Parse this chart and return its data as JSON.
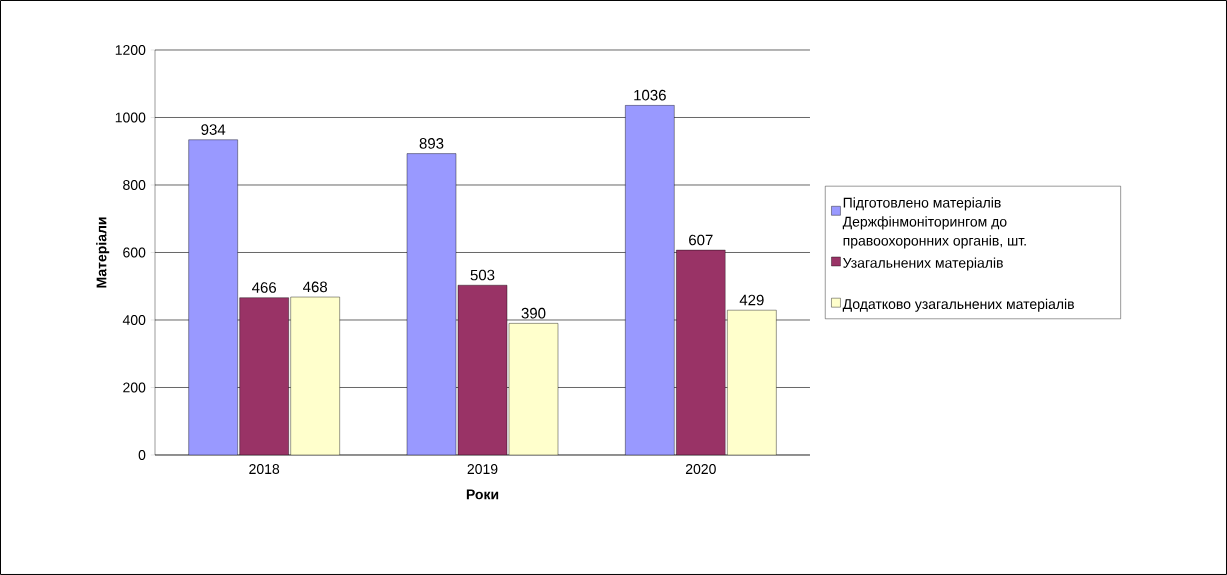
{
  "chart_data": {
    "type": "bar",
    "xlabel": "Роки",
    "ylabel": "Матеріали",
    "categories": [
      "2018",
      "2019",
      "2020"
    ],
    "series": [
      {
        "name": "Підготовлено матеріалів Держфінмоніторингом до правоохоронних органів, шт.",
        "color": "#9999ff",
        "values": [
          934,
          893,
          1036
        ]
      },
      {
        "name": "Узагальнених матеріалів",
        "color": "#993366",
        "values": [
          466,
          503,
          607
        ]
      },
      {
        "name": "Додатково узагальнених матеріалів",
        "color": "#ffffcc",
        "values": [
          468,
          390,
          429
        ]
      }
    ],
    "ylim": [
      0,
      1200
    ],
    "yticks": [
      0,
      200,
      400,
      600,
      800,
      1000,
      1200
    ],
    "grid": "y",
    "legend": "right",
    "data_labels": true
  }
}
